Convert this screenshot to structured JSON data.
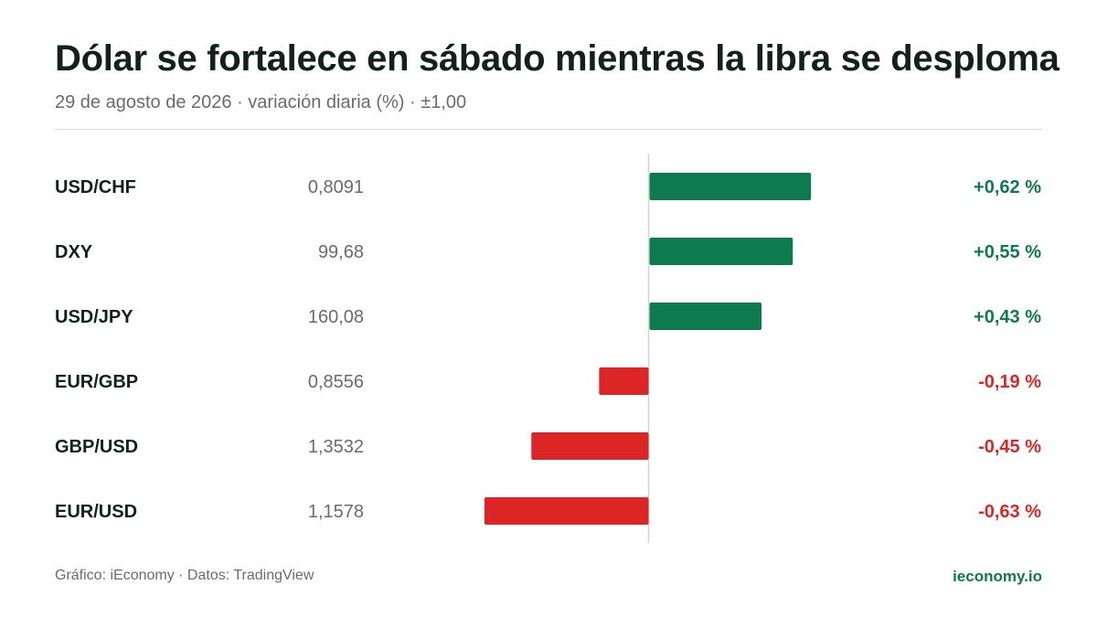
{
  "header": {
    "title": "Dólar se fortalece en sábado mientras la libra se desploma",
    "subtitle": "29 de agosto de 2026 · variación diaria (%) · ±1,00"
  },
  "footer": {
    "source": "Gráfico: iEconomy · Datos: TradingView",
    "brand": "ieconomy.io"
  },
  "colors": {
    "positive": "#0e7a4f",
    "negative": "#dc2626",
    "baseline": "#d4d4d4"
  },
  "chart_data": {
    "type": "bar",
    "orientation": "horizontal",
    "categories": [
      "USD/CHF",
      "DXY",
      "USD/JPY",
      "EUR/GBP",
      "GBP/USD",
      "EUR/USD"
    ],
    "prices": [
      "0,8091",
      "99,68",
      "160,08",
      "0,8556",
      "1,3532",
      "1,1578"
    ],
    "values": [
      0.62,
      0.55,
      0.43,
      -0.19,
      -0.45,
      -0.63
    ],
    "value_labels": [
      "+0,62 %",
      "+0,55 %",
      "+0,43 %",
      "-0,19 %",
      "-0,45 %",
      "-0,63 %"
    ],
    "xlim": [
      -1.0,
      1.0
    ],
    "grid": false
  }
}
